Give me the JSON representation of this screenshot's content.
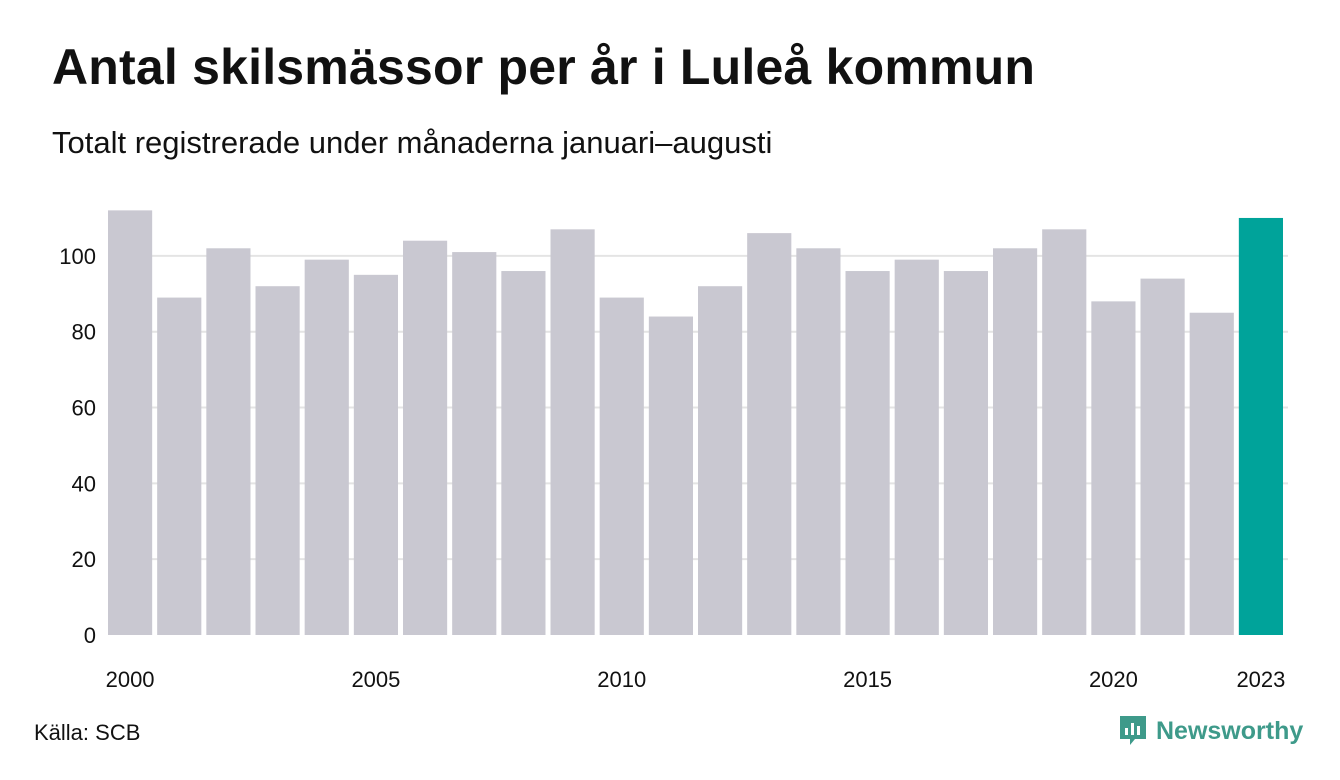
{
  "header": {
    "title": "Antal skilsmässor per år i Luleå kommun",
    "subtitle": "Totalt registrerade under månaderna januari–augusti"
  },
  "footer": {
    "source": "Källa: SCB",
    "brand": "Newsworthy",
    "brand_icon": "newsworthy-logo-icon"
  },
  "colors": {
    "bar": "#c9c8d1",
    "highlight": "#00a39a",
    "grid": "#e4e4e4",
    "brand": "#3e9a8a"
  },
  "chart_data": {
    "type": "bar",
    "categories": [
      "2000",
      "2001",
      "2002",
      "2003",
      "2004",
      "2005",
      "2006",
      "2007",
      "2008",
      "2009",
      "2010",
      "2011",
      "2012",
      "2013",
      "2014",
      "2015",
      "2016",
      "2017",
      "2018",
      "2019",
      "2020",
      "2021",
      "2022",
      "2023"
    ],
    "values": [
      112,
      89,
      102,
      92,
      99,
      95,
      104,
      101,
      96,
      107,
      89,
      84,
      92,
      106,
      102,
      96,
      99,
      96,
      102,
      107,
      88,
      94,
      85,
      110
    ],
    "highlight_category": "2023",
    "x_tick_labels": [
      "2000",
      "2005",
      "2010",
      "2015",
      "2020",
      "2023"
    ],
    "y_ticks": [
      0,
      20,
      40,
      60,
      80,
      100
    ],
    "ylim": [
      0,
      115
    ],
    "grid": true,
    "legend": "none"
  }
}
